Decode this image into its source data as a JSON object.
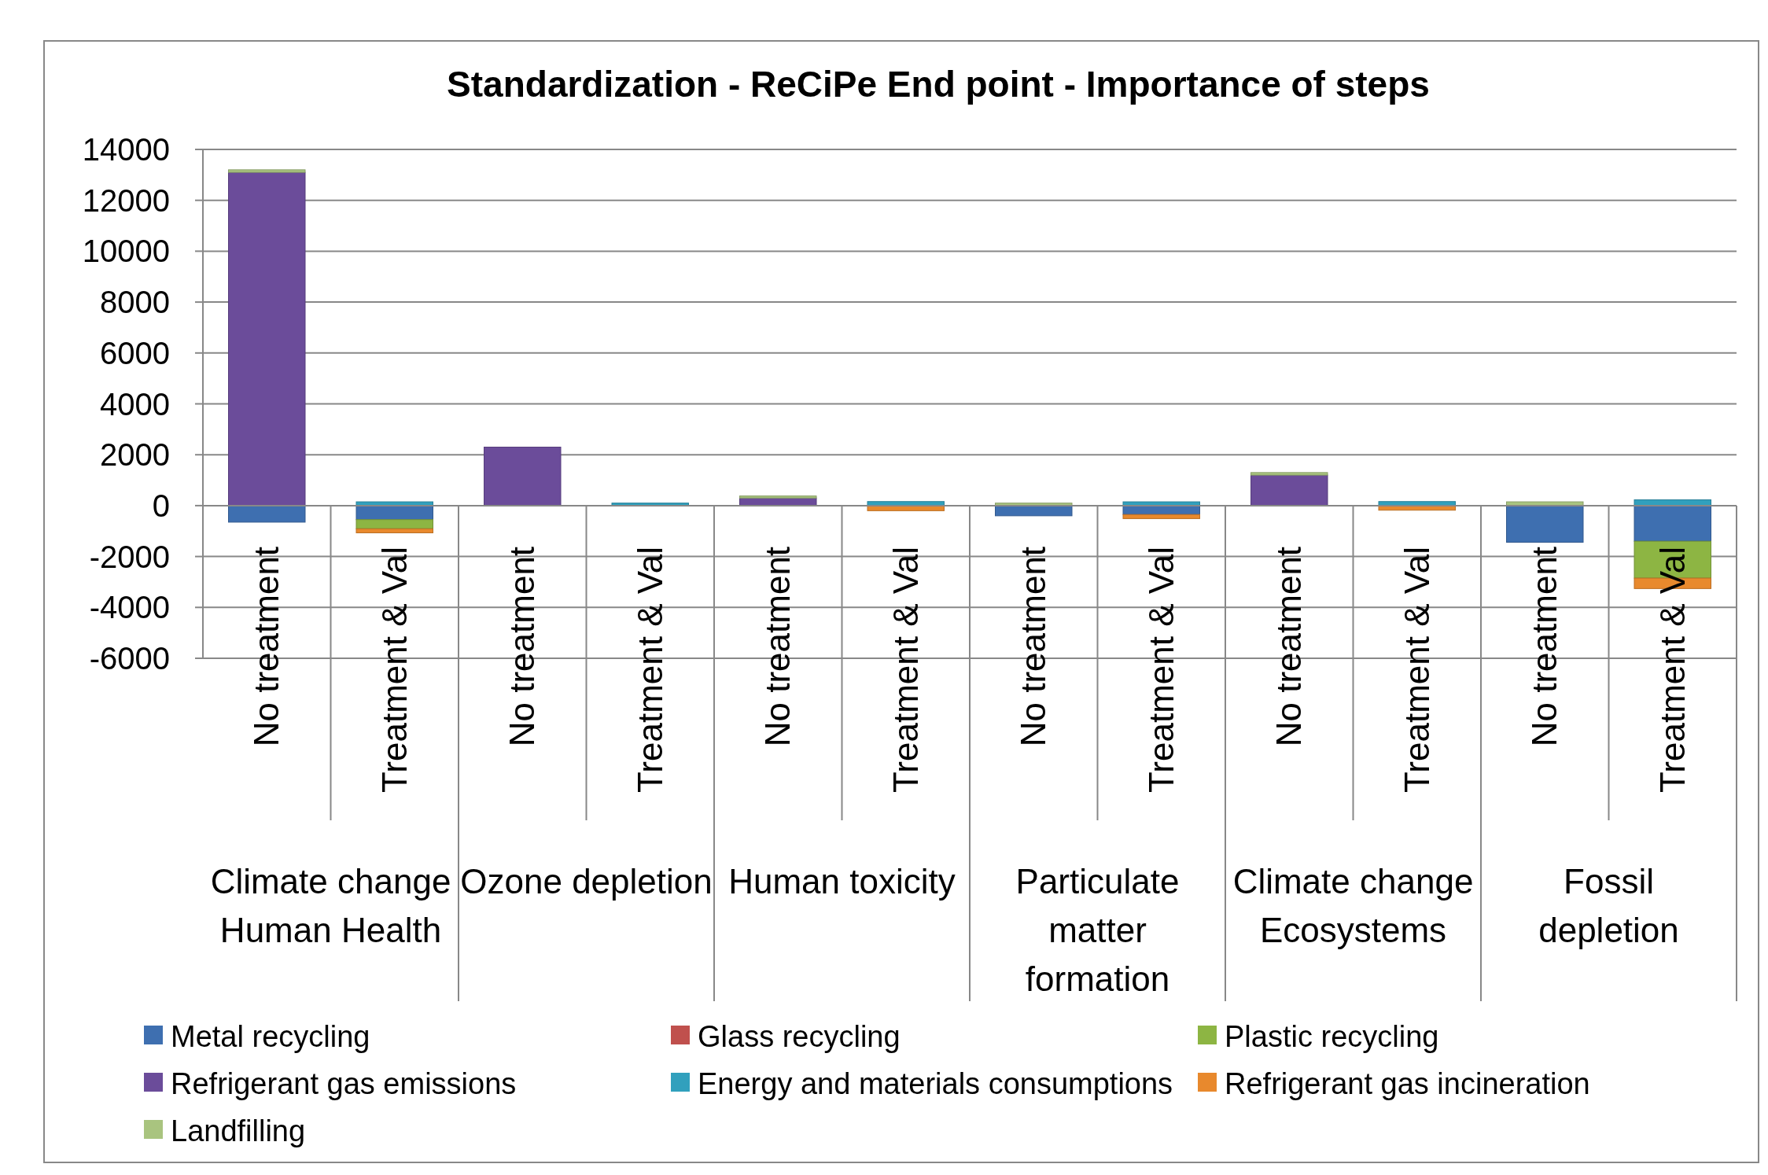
{
  "chart_data": {
    "type": "bar",
    "title": "Standardization - ReCiPe End point - Importance of steps",
    "stacked": true,
    "categories": [
      "No treatment",
      "Treatment & Val",
      "No treatment",
      "Treatment & Val",
      "No treatment",
      "Treatment & Val",
      "No treatment",
      "Treatment & Val",
      "No treatment",
      "Treatment & Val",
      "No treatment",
      "Treatment & Val"
    ],
    "annotations": [
      "Climate change Human Health",
      "Ozone depletion",
      "Human toxicity",
      "Particulate matter formation",
      "Climate change Ecosystems",
      "Fossil depletion"
    ],
    "ylim": [
      -6000,
      14000
    ],
    "yticks": [
      -6000,
      -4000,
      -2000,
      0,
      2000,
      4000,
      6000,
      8000,
      10000,
      12000,
      14000
    ],
    "grid": "y",
    "legend": "bottom",
    "series": [
      {
        "name": "Metal recycling",
        "color": "#3e6fb0",
        "values": [
          -650,
          -550,
          0,
          null,
          null,
          0,
          -400,
          -350,
          0,
          0,
          -1440,
          -1400
        ]
      },
      {
        "name": "Glass recycling",
        "color": "#c0504d",
        "values": [
          0,
          0,
          0,
          0,
          0,
          0,
          0,
          0,
          0,
          0,
          0,
          0
        ]
      },
      {
        "name": "Plastic recycling",
        "color": "#8db543",
        "values": [
          0,
          -360,
          0,
          0,
          0,
          0,
          0,
          0,
          0,
          0,
          0,
          -1450
        ]
      },
      {
        "name": "Refrigerant gas emissions",
        "color": "#6b4c9a",
        "values": [
          13100,
          0,
          2300,
          0,
          300,
          0,
          0,
          0,
          1200,
          0,
          0,
          0
        ]
      },
      {
        "name": "Energy and materials consumptions",
        "color": "#31a0bd",
        "values": [
          0,
          150,
          0,
          100,
          0,
          160,
          0,
          150,
          0,
          160,
          0,
          230
        ]
      },
      {
        "name": "Refrigerant gas incineration",
        "color": "#e8892d",
        "values": [
          0,
          -160,
          0,
          0,
          0,
          -200,
          0,
          -160,
          0,
          -180,
          0,
          -410
        ]
      },
      {
        "name": "Landfilling",
        "color": "#a9c47f",
        "values": [
          100,
          0,
          0,
          0,
          80,
          0,
          100,
          0,
          100,
          0,
          150,
          0
        ]
      }
    ]
  }
}
